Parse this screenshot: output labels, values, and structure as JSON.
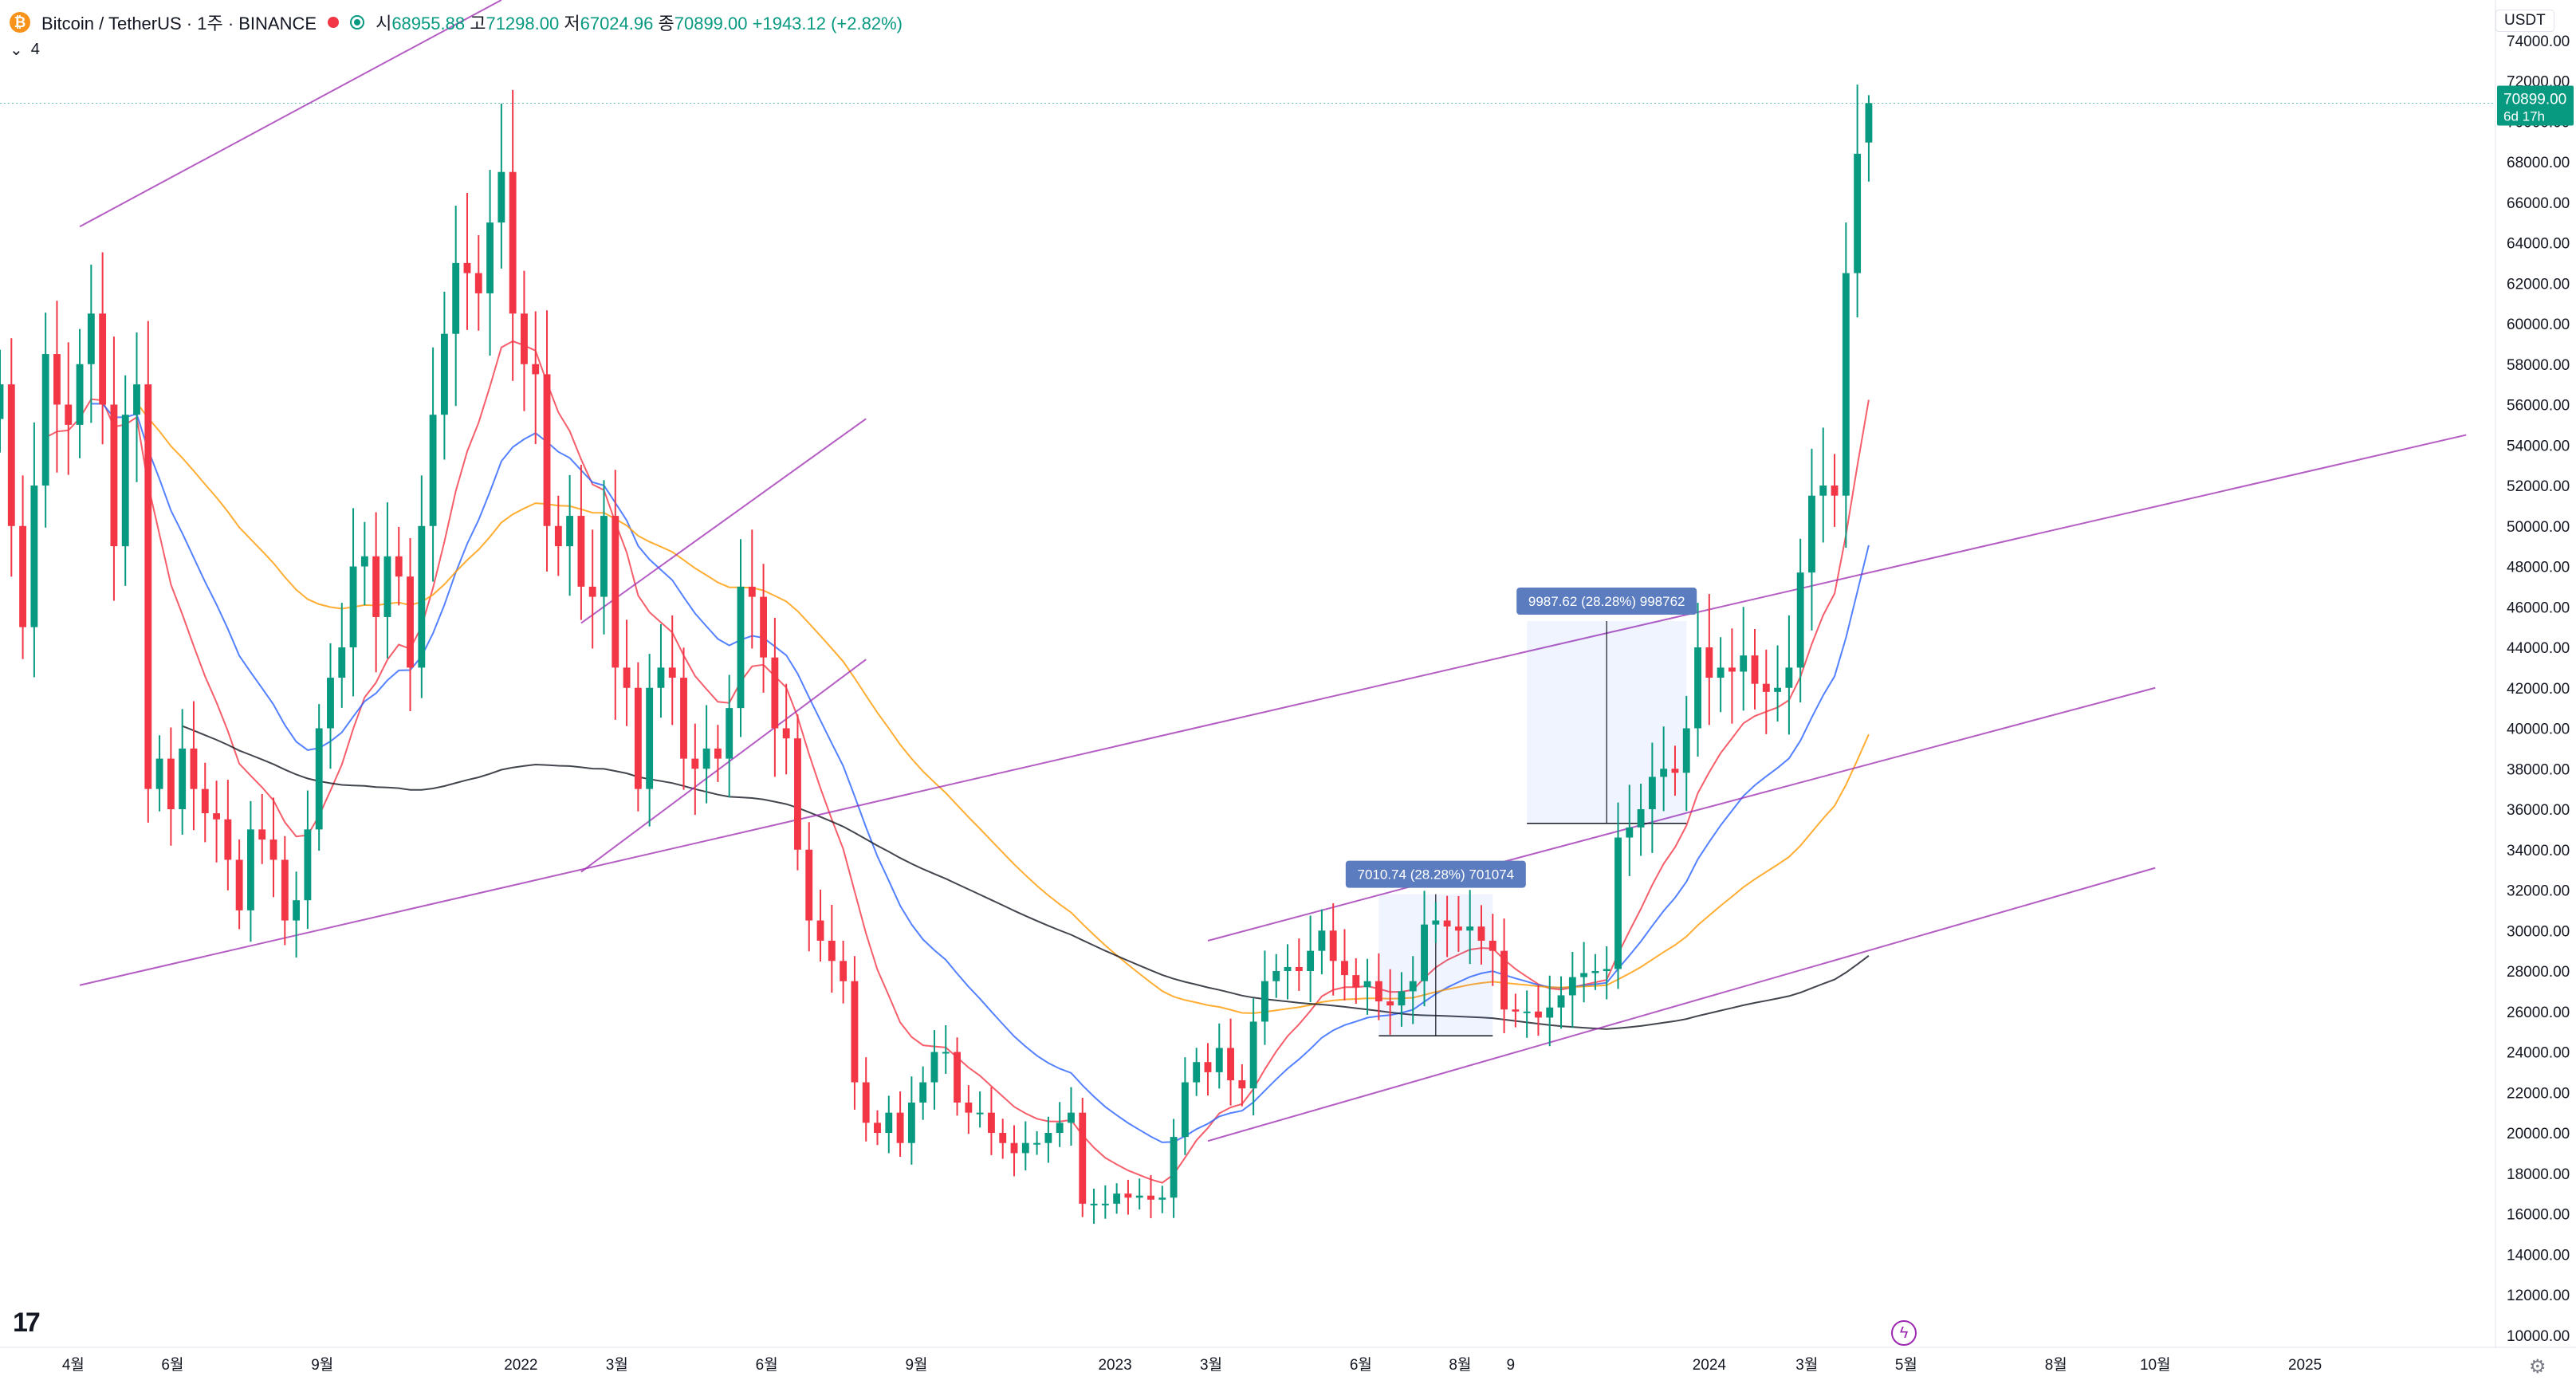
{
  "header": {
    "symbol": "Bitcoin / TetherUS · 1주 · BINANCE",
    "open_label": "시",
    "open": "68955.88",
    "high_label": "고",
    "high": "71298.00",
    "low_label": "저",
    "low": "67024.96",
    "close_label": "종",
    "close": "70899.00",
    "change": "+1943.12 (+2.82%)",
    "indicator_count": "4"
  },
  "price_axis": {
    "currency": "USDT",
    "last_price": "70899.00",
    "countdown": "6d 17h"
  },
  "colors": {
    "up": "#089981",
    "down": "#f23645",
    "ema_fast": "#f23645",
    "ema_mid": "#2962ff",
    "ema_slow": "#ff9800",
    "ema_long": "#131722",
    "trendline": "#9c27b0",
    "range_label": "#5b7cbf"
  },
  "chart_data": {
    "type": "candlestick",
    "y_ticks": [
      10000,
      12000,
      14000,
      16000,
      18000,
      20000,
      22000,
      24000,
      26000,
      28000,
      30000,
      32000,
      34000,
      36000,
      38000,
      40000,
      42000,
      44000,
      46000,
      48000,
      50000,
      52000,
      54000,
      56000,
      58000,
      60000,
      62000,
      64000,
      66000,
      68000,
      70000,
      72000,
      74000
    ],
    "ylim": [
      9400,
      76000
    ],
    "xlim": [
      "2021-02-15",
      "2025-04-28"
    ],
    "x_ticks": [
      {
        "date": "2021-04-01",
        "label": "4월"
      },
      {
        "date": "2021-06-01",
        "label": "6월"
      },
      {
        "date": "2021-09-01",
        "label": "9월"
      },
      {
        "date": "2022-01-01",
        "label": "2022"
      },
      {
        "date": "2022-03-01",
        "label": "3월"
      },
      {
        "date": "2022-06-01",
        "label": "6월"
      },
      {
        "date": "2022-09-01",
        "label": "9월"
      },
      {
        "date": "2023-01-01",
        "label": "2023"
      },
      {
        "date": "2023-03-01",
        "label": "3월"
      },
      {
        "date": "2023-06-01",
        "label": "6월"
      },
      {
        "date": "2023-08-01",
        "label": "8월"
      },
      {
        "date": "2023-09-01",
        "label": "9"
      },
      {
        "date": "2024-01-01",
        "label": "2024"
      },
      {
        "date": "2024-03-01",
        "label": "3월"
      },
      {
        "date": "2024-05-01",
        "label": "5월"
      },
      {
        "date": "2024-08-01",
        "label": "8월"
      },
      {
        "date": "2024-10-01",
        "label": "10월"
      },
      {
        "date": "2025-01-01",
        "label": "2025"
      }
    ],
    "closes": [
      57000,
      50000,
      45000,
      52000,
      58500,
      56000,
      55000,
      58000,
      60500,
      56000,
      49000,
      55500,
      57000,
      37000,
      38500,
      36000,
      39000,
      37000,
      35800,
      35500,
      33500,
      31000,
      35000,
      34500,
      33500,
      30500,
      31500,
      35000,
      40000,
      42500,
      44000,
      48000,
      48500,
      45500,
      48500,
      47500,
      43000,
      50000,
      55500,
      59500,
      63000,
      62500,
      61500,
      65000,
      67500,
      60500,
      58000,
      57500,
      50000,
      49000,
      50500,
      47000,
      46500,
      50500,
      43000,
      42000,
      37000,
      42000,
      43000,
      42500,
      38500,
      38000,
      39000,
      38500,
      41000,
      47000,
      46500,
      43500,
      40000,
      39500,
      34000,
      30500,
      29500,
      28500,
      27500,
      22500,
      20500,
      20000,
      21000,
      19500,
      21500,
      22500,
      24000,
      24000,
      21500,
      21000,
      21000,
      20000,
      19500,
      19000,
      19500,
      19500,
      20000,
      20500,
      21000,
      16500,
      16500,
      16500,
      17000,
      16800,
      16900,
      16700,
      16800,
      19800,
      22500,
      23500,
      23000,
      24200,
      22600,
      22200,
      25500,
      27500,
      28000,
      28200,
      28000,
      29000,
      30000,
      28500,
      27800,
      27200,
      27500,
      26500,
      26300,
      27000,
      27500,
      30300,
      30500,
      30200,
      30000,
      30200,
      29500,
      29000,
      26100,
      26000,
      26000,
      25700,
      26200,
      26800,
      27700,
      27900,
      28000,
      28100,
      34600,
      35100,
      36000,
      37600,
      38000,
      37800,
      40000,
      44000,
      42500,
      43000,
      42800,
      43600,
      42200,
      41800,
      42000,
      43000,
      47700,
      51500,
      52000,
      51500,
      62500,
      68400,
      70899
    ],
    "range_annotations": [
      {
        "label": "7010.74 (28.28%) 701074",
        "from": "2023-06-12",
        "to": "2023-08-21",
        "low": 24800,
        "high": 31800
      },
      {
        "label": "9987.62 (28.28%) 998762",
        "from": "2023-09-11",
        "to": "2023-12-18",
        "low": 35300,
        "high": 45300
      }
    ]
  }
}
